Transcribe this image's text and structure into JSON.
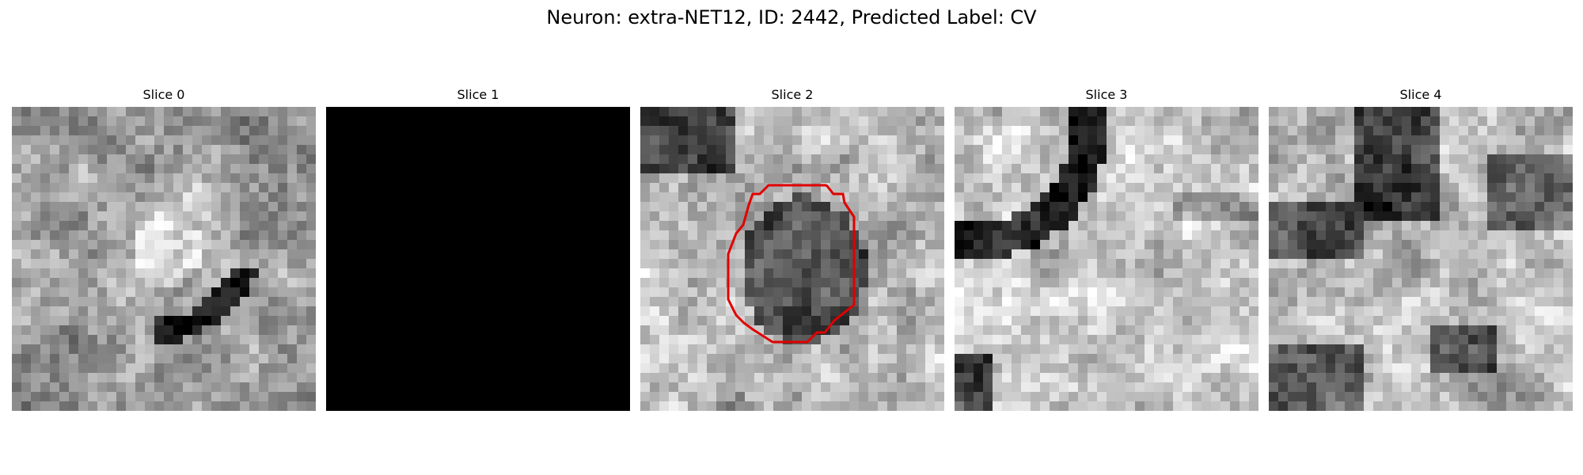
{
  "figure": {
    "title": "Neuron: extra-NET12, ID: 2442, Predicted Label: CV"
  },
  "panels": [
    {
      "title": "Slice 0",
      "pattern": "ring",
      "seed": 11,
      "blank": false,
      "outline": false
    },
    {
      "title": "Slice 1",
      "pattern": "blank",
      "seed": 0,
      "blank": true,
      "outline": false
    },
    {
      "title": "Slice 2",
      "pattern": "blob",
      "seed": 23,
      "blank": false,
      "outline": true
    },
    {
      "title": "Slice 3",
      "pattern": "arc",
      "seed": 37,
      "blank": false,
      "outline": false
    },
    {
      "title": "Slice 4",
      "pattern": "patches",
      "seed": 51,
      "blank": false,
      "outline": false
    }
  ],
  "colors": {
    "outline": "#e00000",
    "background": "#ffffff",
    "blank_slice": "#000000"
  }
}
